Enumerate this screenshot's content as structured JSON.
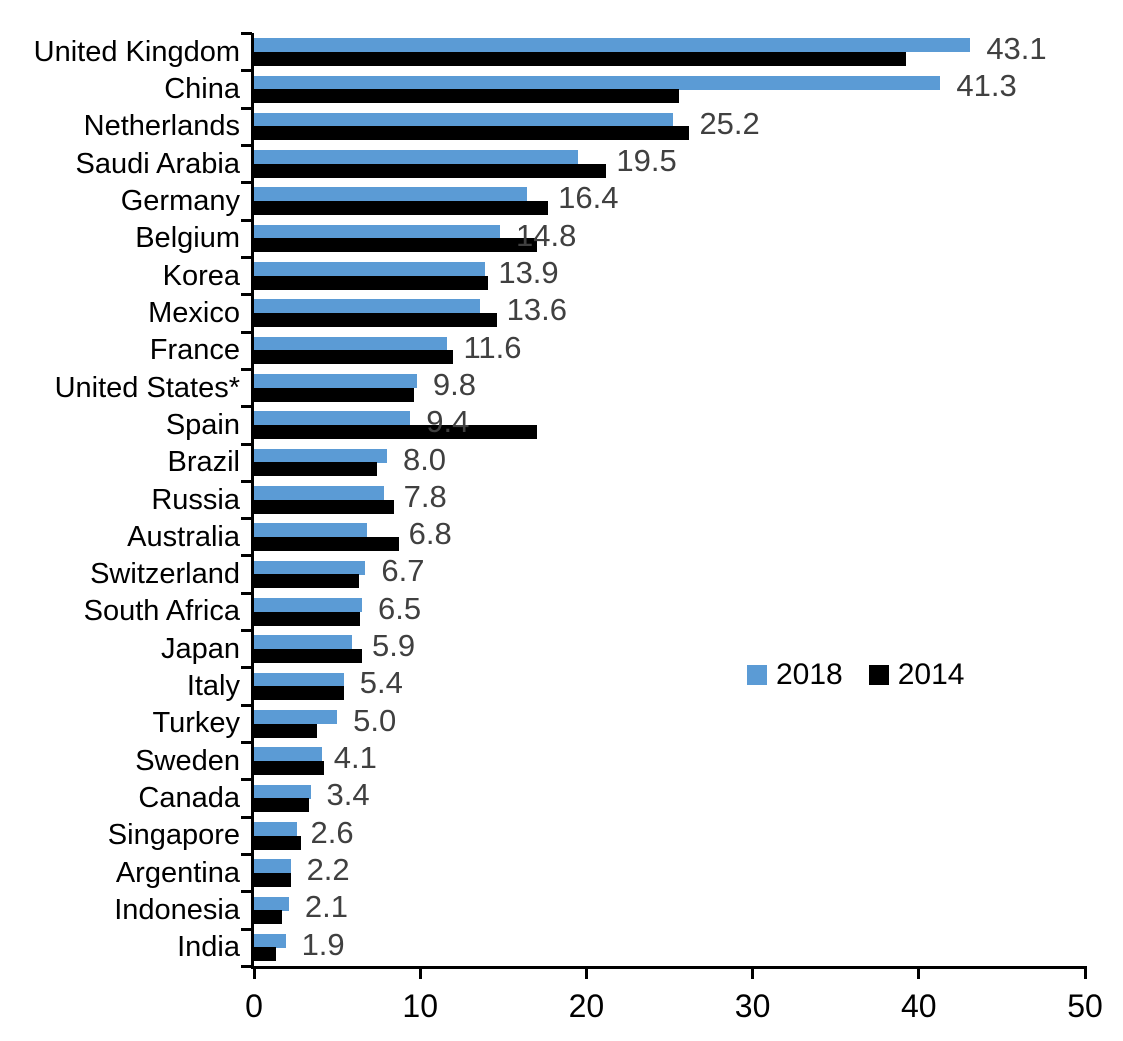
{
  "chart_data": {
    "type": "bar",
    "orientation": "horizontal",
    "title": "",
    "xlabel": "",
    "ylabel": "",
    "categories": [
      "United Kingdom",
      "China",
      "Netherlands",
      "Saudi Arabia",
      "Germany",
      "Belgium",
      "Korea",
      "Mexico",
      "France",
      "United States*",
      "Spain",
      "Brazil",
      "Russia",
      "Australia",
      "Switzerland",
      "South Africa",
      "Japan",
      "Italy",
      "Turkey",
      "Sweden",
      "Canada",
      "Singapore",
      "Argentina",
      "Indonesia",
      "India"
    ],
    "series": [
      {
        "name": "2018",
        "color": "#5B9BD5",
        "values": [
          43.1,
          41.3,
          25.2,
          19.5,
          16.4,
          14.8,
          13.9,
          13.6,
          11.6,
          9.8,
          9.4,
          8.0,
          7.8,
          6.8,
          6.7,
          6.5,
          5.9,
          5.4,
          5.0,
          4.1,
          3.4,
          2.6,
          2.2,
          2.1,
          1.9
        ],
        "data_labels": [
          "43.1",
          "41.3",
          "25.2",
          "19.5",
          "16.4",
          "14.8",
          "13.9",
          "13.6",
          "11.6",
          "9.8",
          "9.4",
          "8.0",
          "7.8",
          "6.8",
          "6.7",
          "6.5",
          "5.9",
          "5.4",
          "5.0",
          "4.1",
          "3.4",
          "2.6",
          "2.2",
          "2.1",
          "1.9"
        ]
      },
      {
        "name": "2014",
        "color": "#000000",
        "values": [
          39.2,
          25.6,
          26.2,
          21.2,
          17.7,
          17.0,
          14.1,
          14.6,
          12.0,
          9.6,
          17.0,
          7.4,
          8.4,
          8.7,
          6.3,
          6.4,
          6.5,
          5.4,
          3.8,
          4.2,
          3.3,
          2.8,
          2.2,
          1.7,
          1.3
        ]
      }
    ],
    "x_ticks": [
      "0",
      "10",
      "20",
      "30",
      "40",
      "50"
    ],
    "xlim": [
      0,
      50
    ],
    "grid": false,
    "legend_position": "center-right"
  },
  "legend": {
    "items": [
      {
        "label": "2018",
        "color": "#5B9BD5"
      },
      {
        "label": "2014",
        "color": "#000000"
      }
    ]
  },
  "colors": {
    "bar_2018": "#5B9BD5",
    "bar_2014": "#000000",
    "value_label": "#404040",
    "axis": "#000000",
    "background": "#FFFFFF"
  }
}
